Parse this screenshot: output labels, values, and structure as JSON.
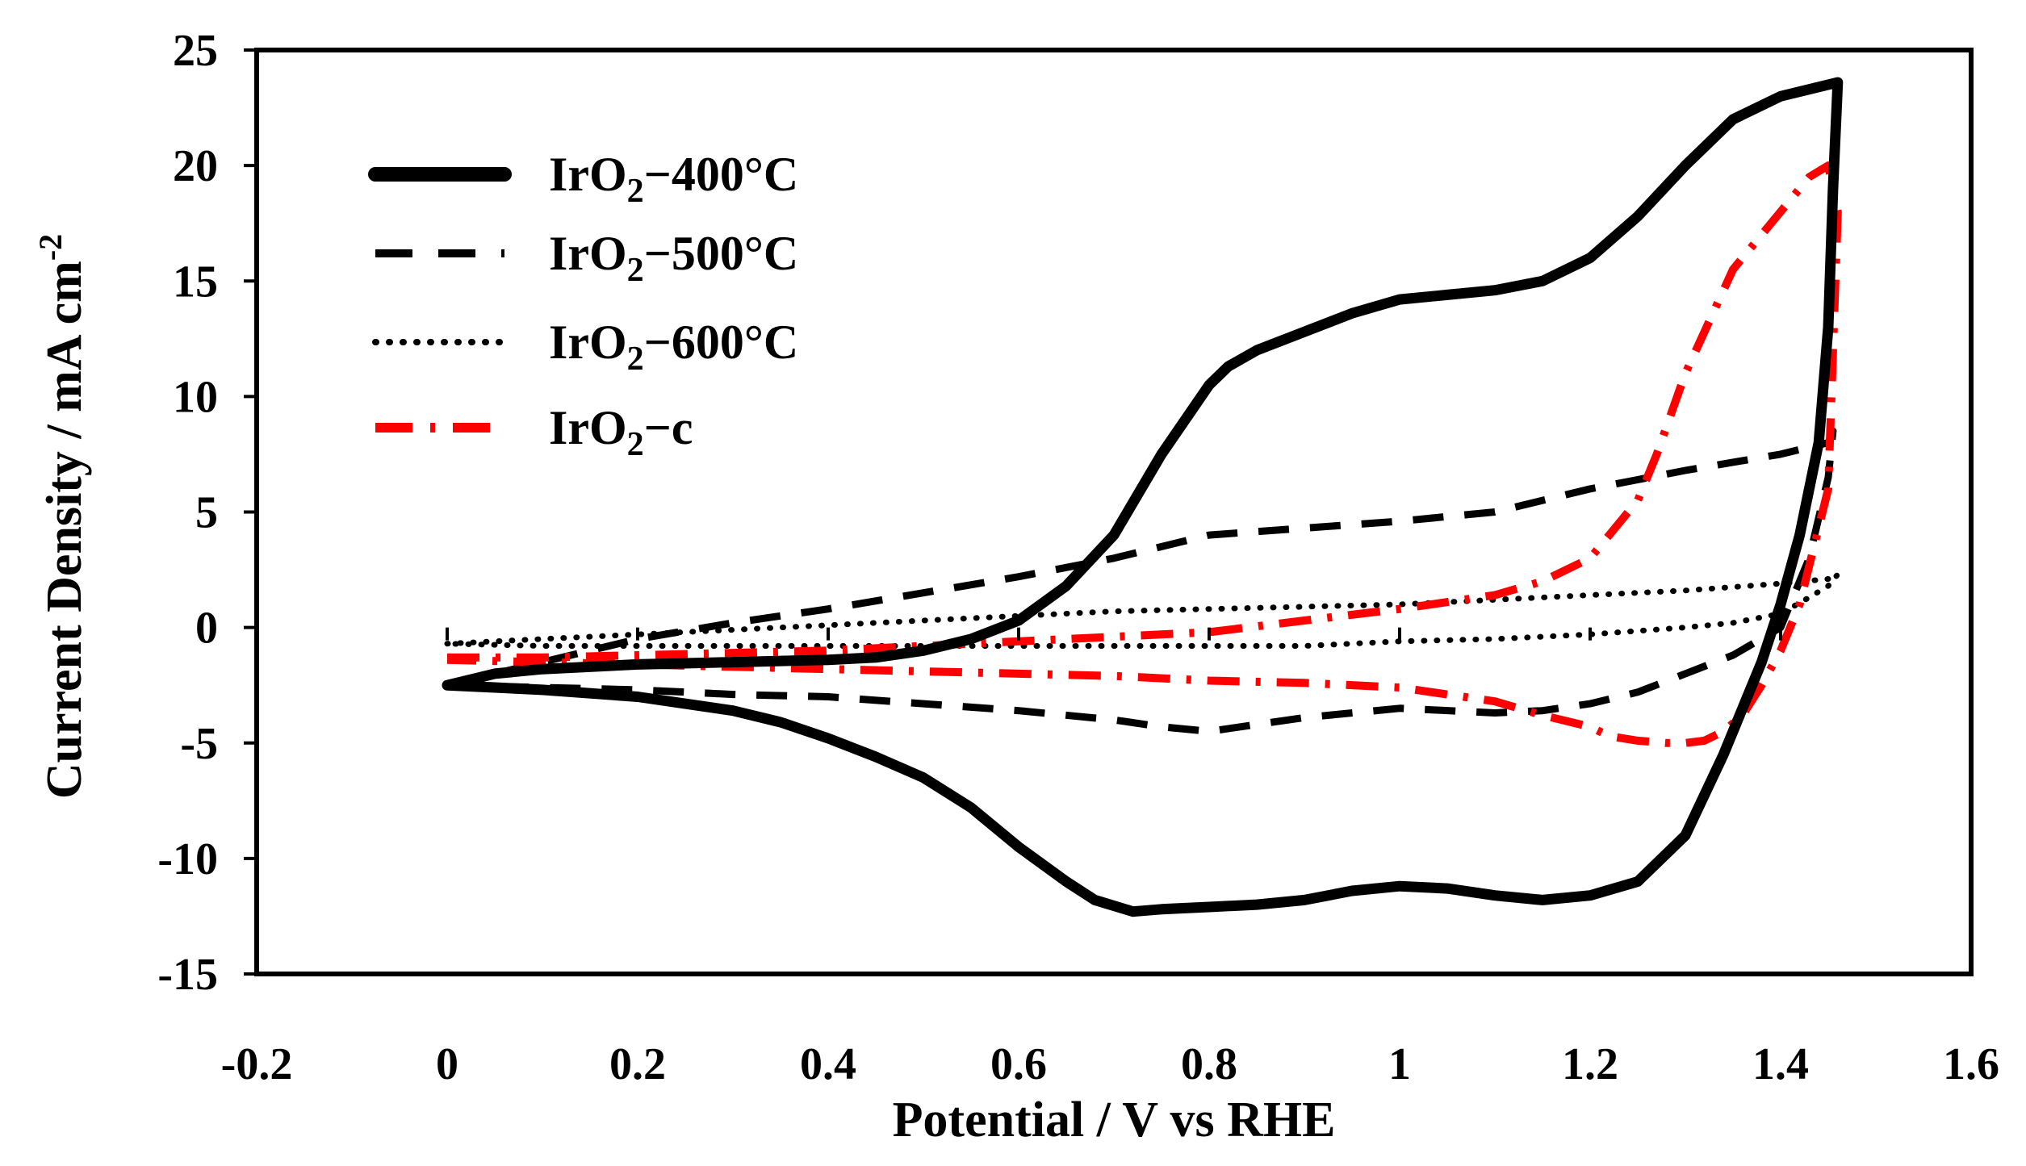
{
  "chart_data": {
    "type": "line",
    "title": "",
    "xlabel": "Potential / V vs RHE",
    "ylabel": "Current Density / mA cm",
    "ylabel_sup": "-2",
    "xlim": [
      -0.2,
      1.6
    ],
    "ylim": [
      -15,
      25
    ],
    "xticks": [
      -0.2,
      0,
      0.2,
      0.4,
      0.6,
      0.8,
      1,
      1.2,
      1.4,
      1.6
    ],
    "xtick_labels": [
      "-0.2",
      "0",
      "0.2",
      "0.4",
      "0.6",
      "0.8",
      "1",
      "1.2",
      "1.4",
      "1.6"
    ],
    "yticks": [
      -15,
      -10,
      -5,
      0,
      5,
      10,
      15,
      20,
      25
    ],
    "ytick_labels": [
      "-15",
      "-10",
      "-5",
      "0",
      "5",
      "10",
      "15",
      "20",
      "25"
    ],
    "grid": false,
    "legend_position": "top-left",
    "series": [
      {
        "name": "IrO2-400°C",
        "label_main": "IrO",
        "label_sub": "2",
        "label_rest": "−400°C",
        "color": "#000000",
        "style": "solid",
        "x": [
          0.0,
          0.05,
          0.1,
          0.2,
          0.3,
          0.4,
          0.45,
          0.5,
          0.55,
          0.6,
          0.65,
          0.7,
          0.75,
          0.78,
          0.8,
          0.82,
          0.85,
          0.9,
          0.95,
          1.0,
          1.05,
          1.1,
          1.15,
          1.2,
          1.25,
          1.3,
          1.35,
          1.4,
          1.43,
          1.46,
          1.455,
          1.45,
          1.44,
          1.42,
          1.4,
          1.38,
          1.36,
          1.34,
          1.3,
          1.25,
          1.2,
          1.15,
          1.1,
          1.05,
          1.0,
          0.95,
          0.9,
          0.85,
          0.8,
          0.75,
          0.72,
          0.68,
          0.65,
          0.6,
          0.55,
          0.5,
          0.45,
          0.4,
          0.35,
          0.3,
          0.2,
          0.1,
          0.05,
          0.0
        ],
        "y": [
          -2.5,
          -2.0,
          -1.8,
          -1.6,
          -1.5,
          -1.4,
          -1.3,
          -1.0,
          -0.5,
          0.3,
          1.8,
          4.0,
          7.5,
          9.3,
          10.5,
          11.3,
          12.0,
          12.8,
          13.6,
          14.2,
          14.4,
          14.6,
          15.0,
          16.0,
          17.8,
          20.0,
          22.0,
          23.0,
          23.3,
          23.6,
          19.0,
          13.0,
          8.0,
          4.0,
          1.0,
          -1.5,
          -3.5,
          -5.5,
          -9.0,
          -11.0,
          -11.6,
          -11.8,
          -11.6,
          -11.3,
          -11.2,
          -11.4,
          -11.8,
          -12.0,
          -12.1,
          -12.2,
          -12.3,
          -11.8,
          -11.0,
          -9.5,
          -7.8,
          -6.5,
          -5.6,
          -4.8,
          -4.1,
          -3.6,
          -3.0,
          -2.7,
          -2.6,
          -2.5
        ]
      },
      {
        "name": "IrO2-500°C",
        "label_main": "IrO",
        "label_sub": "2",
        "label_rest": "−500°C",
        "color": "#000000",
        "style": "dashed",
        "x": [
          0.0,
          0.1,
          0.2,
          0.3,
          0.4,
          0.5,
          0.6,
          0.7,
          0.8,
          0.9,
          1.0,
          1.1,
          1.2,
          1.3,
          1.4,
          1.45,
          1.455,
          1.45,
          1.43,
          1.4,
          1.35,
          1.3,
          1.25,
          1.2,
          1.15,
          1.1,
          1.0,
          0.9,
          0.8,
          0.75,
          0.7,
          0.6,
          0.5,
          0.4,
          0.3,
          0.2,
          0.1,
          0.0
        ],
        "y": [
          -2.5,
          -1.5,
          -0.5,
          0.2,
          0.8,
          1.5,
          2.2,
          3.0,
          4.0,
          4.3,
          4.6,
          5.0,
          6.0,
          6.8,
          7.5,
          8.0,
          8.5,
          6.5,
          3.0,
          0.0,
          -1.2,
          -2.0,
          -2.8,
          -3.3,
          -3.6,
          -3.7,
          -3.5,
          -3.9,
          -4.5,
          -4.3,
          -4.0,
          -3.6,
          -3.3,
          -3.0,
          -2.9,
          -2.7,
          -2.6,
          -2.5
        ]
      },
      {
        "name": "IrO2-600°C",
        "label_main": "IrO",
        "label_sub": "2",
        "label_rest": "−600°C",
        "color": "#000000",
        "style": "dotted",
        "x": [
          0.0,
          0.1,
          0.2,
          0.3,
          0.4,
          0.5,
          0.6,
          0.7,
          0.8,
          0.9,
          1.0,
          1.1,
          1.2,
          1.3,
          1.4,
          1.45,
          1.46,
          1.45,
          1.43,
          1.4,
          1.35,
          1.3,
          1.2,
          1.1,
          1.0,
          0.9,
          0.8,
          0.7,
          0.6,
          0.5,
          0.4,
          0.3,
          0.2,
          0.1,
          0.0
        ],
        "y": [
          -0.7,
          -0.5,
          -0.3,
          -0.1,
          0.1,
          0.3,
          0.5,
          0.7,
          0.8,
          0.9,
          1.0,
          1.2,
          1.4,
          1.6,
          1.9,
          2.1,
          2.3,
          1.8,
          1.3,
          0.6,
          0.2,
          0.0,
          -0.3,
          -0.5,
          -0.6,
          -0.8,
          -0.8,
          -0.8,
          -0.8,
          -0.8,
          -0.8,
          -0.8,
          -0.8,
          -0.8,
          -0.7
        ]
      },
      {
        "name": "IrO2-c",
        "label_main": "IrO",
        "label_sub": "2",
        "label_rest": "−c",
        "color": "#ff0000",
        "style": "dashdot",
        "x": [
          0.0,
          0.1,
          0.2,
          0.3,
          0.4,
          0.5,
          0.6,
          0.7,
          0.8,
          0.9,
          1.0,
          1.1,
          1.15,
          1.2,
          1.25,
          1.27,
          1.3,
          1.35,
          1.4,
          1.43,
          1.45,
          1.46,
          1.455,
          1.45,
          1.42,
          1.4,
          1.38,
          1.36,
          1.34,
          1.32,
          1.3,
          1.28,
          1.25,
          1.22,
          1.2,
          1.15,
          1.1,
          1.0,
          0.9,
          0.8,
          0.7,
          0.6,
          0.5,
          0.4,
          0.3,
          0.2,
          0.1,
          0.0
        ],
        "y": [
          -1.3,
          -1.3,
          -1.2,
          -1.1,
          -1.0,
          -0.8,
          -0.6,
          -0.4,
          -0.2,
          0.3,
          0.8,
          1.4,
          2.0,
          3.0,
          5.5,
          7.5,
          11.0,
          15.5,
          18.0,
          19.5,
          20.0,
          18.0,
          12.0,
          6.0,
          1.0,
          -1.0,
          -2.5,
          -3.8,
          -4.5,
          -4.9,
          -5.0,
          -5.0,
          -4.9,
          -4.7,
          -4.3,
          -3.8,
          -3.2,
          -2.6,
          -2.4,
          -2.3,
          -2.1,
          -2.0,
          -1.9,
          -1.8,
          -1.7,
          -1.6,
          -1.5,
          -1.4
        ]
      }
    ]
  }
}
